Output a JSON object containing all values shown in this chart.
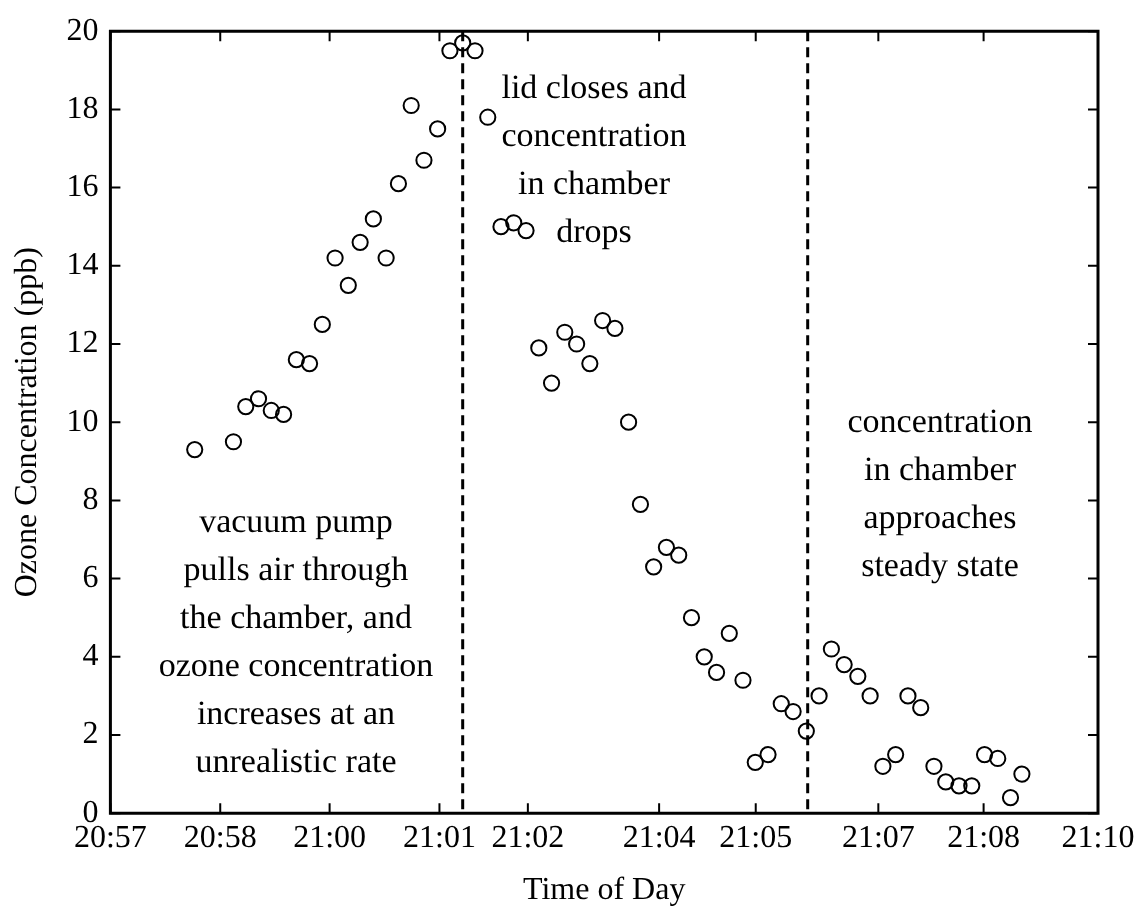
{
  "chart_data": {
    "type": "scatter",
    "xlabel": "Time of Day",
    "ylabel": "Ozone Concentration (ppb)",
    "marker": "circle",
    "grid": false,
    "legend": false,
    "xlim": [
      20.95,
      21.1667
    ],
    "ylim": [
      0,
      20
    ],
    "xticks": [
      {
        "value": 20.95,
        "label": "20:57"
      },
      {
        "value": 20.9741,
        "label": "20:58"
      },
      {
        "value": 20.9981,
        "label": "21:00"
      },
      {
        "value": 21.0222,
        "label": "21:01"
      },
      {
        "value": 21.0416,
        "label": "21:02"
      },
      {
        "value": 21.0704,
        "label": "21:04"
      },
      {
        "value": 21.0916,
        "label": "21:05"
      },
      {
        "value": 21.1185,
        "label": "21:07"
      },
      {
        "value": 21.1416,
        "label": "21:08"
      },
      {
        "value": 21.1667,
        "label": "21:10"
      }
    ],
    "yticks": [
      0,
      2,
      4,
      6,
      8,
      10,
      12,
      14,
      16,
      18,
      20
    ],
    "series": [
      {
        "color": "#000000",
        "x": [
          20.9685,
          20.977,
          20.9797,
          20.9825,
          20.9853,
          20.988,
          20.9908,
          20.9937,
          20.9965,
          20.9993,
          21.0022,
          21.0048,
          21.0077,
          21.0105,
          21.0132,
          21.016,
          21.0188,
          21.0218,
          21.0245,
          21.0273,
          21.03,
          21.0328,
          21.0357,
          21.0385,
          21.0412,
          21.044,
          21.0468,
          21.0497,
          21.0523,
          21.0552,
          21.058,
          21.0607,
          21.0637,
          21.0663,
          21.0692,
          21.072,
          21.0747,
          21.0775,
          21.0803,
          21.083,
          21.0858,
          21.0888,
          21.0915,
          21.0943,
          21.0972,
          21.0998,
          21.1027,
          21.1055,
          21.1082,
          21.111,
          21.114,
          21.1167,
          21.1195,
          21.1223,
          21.125,
          21.1278,
          21.1307,
          21.1333,
          21.1362,
          21.139,
          21.1418,
          21.1447,
          21.1475,
          21.15
        ],
        "values": [
          9.3,
          9.5,
          10.4,
          10.6,
          10.3,
          10.2,
          11.6,
          11.5,
          12.5,
          14.2,
          13.5,
          14.6,
          15.2,
          14.2,
          16.1,
          18.1,
          16.7,
          17.5,
          19.5,
          19.7,
          19.5,
          17.8,
          15,
          15.1,
          14.9,
          11.9,
          11,
          12.3,
          12,
          11.5,
          12.6,
          12.4,
          10,
          7.9,
          6.3,
          6.8,
          6.6,
          5,
          4,
          3.6,
          4.6,
          3.4,
          1.3,
          1.5,
          2.8,
          2.6,
          2.1,
          3,
          4.2,
          3.8,
          3.5,
          3,
          1.2,
          1.5,
          3,
          2.7,
          1.2,
          0.8,
          0.7,
          0.7,
          1.5,
          1.4,
          0.4,
          1
        ]
      }
    ],
    "ref_lines": [
      {
        "axis": "x",
        "value": 21.0273,
        "color": "#000000",
        "line_style": "dashed"
      },
      {
        "axis": "x",
        "value": 21.103,
        "color": "#000000",
        "line_style": "dashed"
      }
    ],
    "annotations": [
      "vacuum pump\npulls air through\nthe chamber, and\nozone concentration\nincreases at an\nunrealistic rate",
      "lid closes and\nconcentration\nin chamber\ndrops",
      "concentration\nin chamber\napproaches\nsteady state"
    ]
  }
}
